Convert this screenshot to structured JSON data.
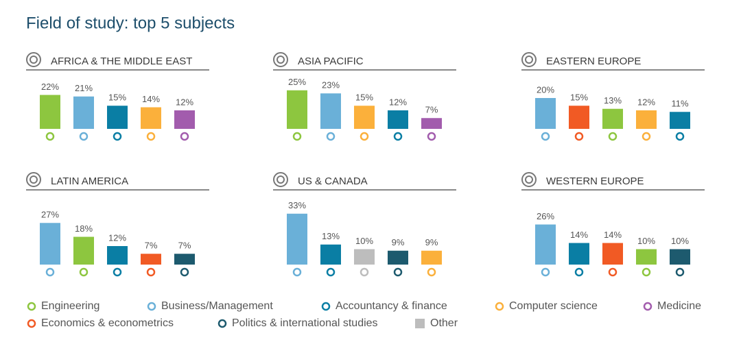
{
  "title": "Field of study: top 5 subjects",
  "legend": [
    {
      "name": "Engineering",
      "color": "#8dc63f"
    },
    {
      "name": "Business/Management",
      "color": "#6ab0d8"
    },
    {
      "name": "Accountancy & finance",
      "color": "#0a7ea4"
    },
    {
      "name": "Computer science",
      "color": "#fbb03b"
    },
    {
      "name": "Medicine",
      "color": "#a25cad"
    },
    {
      "name": "Economics & econometrics",
      "color": "#f15a24"
    },
    {
      "name": "Politics & international studies",
      "color": "#1d5a6e"
    },
    {
      "name": "Other",
      "color": "#bdbdbd"
    }
  ],
  "chart_data": [
    {
      "type": "bar",
      "title": "AFRICA & THE MIDDLE EAST",
      "categories": [
        "Engineering",
        "Business/Management",
        "Accountancy & finance",
        "Computer science",
        "Medicine"
      ],
      "values": [
        22,
        21,
        15,
        14,
        12
      ],
      "value_labels": [
        "22%",
        "21%",
        "15%",
        "14%",
        "12%"
      ]
    },
    {
      "type": "bar",
      "title": "ASIA PACIFIC",
      "categories": [
        "Engineering",
        "Business/Management",
        "Computer science",
        "Accountancy & finance",
        "Medicine"
      ],
      "values": [
        25,
        23,
        15,
        12,
        7
      ],
      "value_labels": [
        "25%",
        "23%",
        "15%",
        "12%",
        "7%"
      ]
    },
    {
      "type": "bar",
      "title": "EASTERN EUROPE",
      "categories": [
        "Business/Management",
        "Economics & econometrics",
        "Engineering",
        "Computer science",
        "Accountancy & finance"
      ],
      "values": [
        20,
        15,
        13,
        12,
        11
      ],
      "value_labels": [
        "20%",
        "15%",
        "13%",
        "12%",
        "11%"
      ]
    },
    {
      "type": "bar",
      "title": "LATIN AMERICA",
      "categories": [
        "Business/Management",
        "Engineering",
        "Accountancy & finance",
        "Economics & econometrics",
        "Politics & international studies"
      ],
      "values": [
        27,
        18,
        12,
        7,
        7
      ],
      "value_labels": [
        "27%",
        "18%",
        "12%",
        "7%",
        "7%"
      ]
    },
    {
      "type": "bar",
      "title": "US & CANADA",
      "categories": [
        "Business/Management",
        "Accountancy & finance",
        "Other",
        "Politics & international studies",
        "Computer science"
      ],
      "values": [
        33,
        13,
        10,
        9,
        9
      ],
      "value_labels": [
        "33%",
        "13%",
        "10%",
        "9%",
        "9%"
      ]
    },
    {
      "type": "bar",
      "title": "WESTERN EUROPE",
      "categories": [
        "Business/Management",
        "Accountancy & finance",
        "Economics & econometrics",
        "Engineering",
        "Politics & international studies"
      ],
      "values": [
        26,
        14,
        14,
        10,
        10
      ],
      "value_labels": [
        "26%",
        "14%",
        "14%",
        "10%",
        "10%"
      ]
    }
  ]
}
